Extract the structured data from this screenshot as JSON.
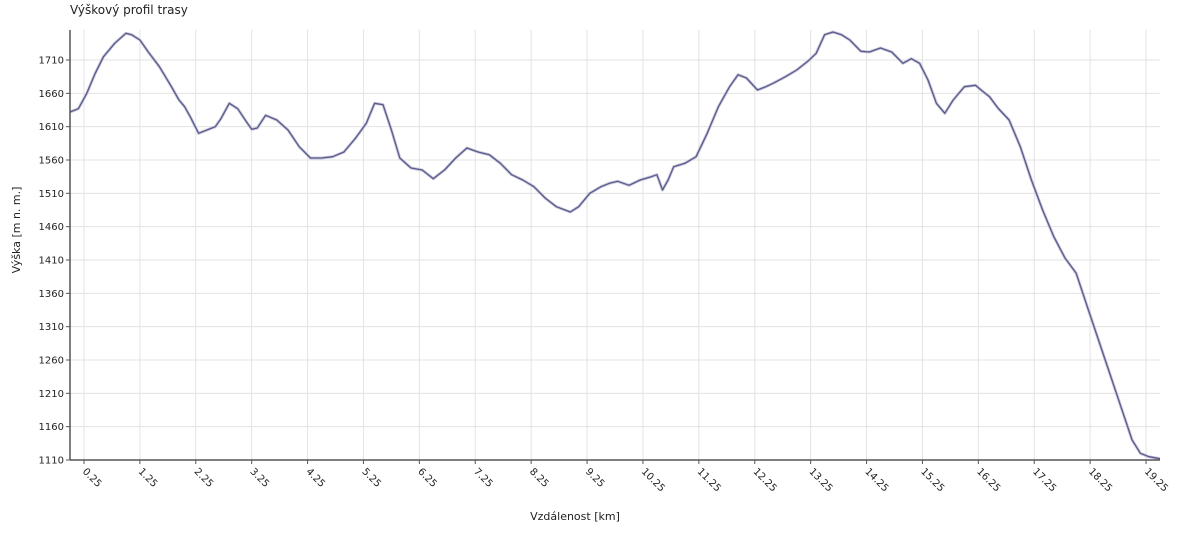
{
  "chart_data": {
    "type": "line",
    "title": "Výškový profil trasy",
    "xlabel": "Vzdálenost [km]",
    "ylabel": "Výška [m n. m.]",
    "xlim": [
      0,
      19.5
    ],
    "ylim": [
      1110,
      1755
    ],
    "x_ticks": [
      0.25,
      1.25,
      2.25,
      3.25,
      4.25,
      5.25,
      6.25,
      7.25,
      8.25,
      9.25,
      10.25,
      11.25,
      12.25,
      13.25,
      14.25,
      15.25,
      16.25,
      17.25,
      18.25,
      19.25
    ],
    "y_ticks": [
      1110,
      1160,
      1210,
      1260,
      1310,
      1360,
      1410,
      1460,
      1510,
      1560,
      1610,
      1660,
      1710
    ],
    "grid": true,
    "colors": {
      "line": "#5a5a8c",
      "grid": "#e3e3e3",
      "axis": "#555555"
    },
    "series": [
      {
        "x": [
          0,
          0.15,
          0.3,
          0.45,
          0.6,
          0.8,
          1.0,
          1.1,
          1.25,
          1.4,
          1.6,
          1.8,
          1.95,
          2.05,
          2.15,
          2.3,
          2.45,
          2.6,
          2.7,
          2.85,
          3.0,
          3.15,
          3.25,
          3.35,
          3.5,
          3.7,
          3.9,
          4.1,
          4.3,
          4.5,
          4.7,
          4.9,
          5.1,
          5.3,
          5.45,
          5.6,
          5.75,
          5.9,
          6.1,
          6.3,
          6.5,
          6.7,
          6.9,
          7.1,
          7.3,
          7.5,
          7.7,
          7.9,
          8.1,
          8.3,
          8.5,
          8.7,
          8.95,
          9.1,
          9.3,
          9.5,
          9.65,
          9.8,
          10.0,
          10.2,
          10.4,
          10.5,
          10.6,
          10.7,
          10.8,
          11.0,
          11.2,
          11.4,
          11.6,
          11.8,
          11.95,
          12.1,
          12.3,
          12.45,
          12.6,
          12.8,
          13.0,
          13.2,
          13.35,
          13.5,
          13.65,
          13.8,
          13.95,
          14.15,
          14.3,
          14.5,
          14.7,
          14.9,
          15.05,
          15.2,
          15.35,
          15.5,
          15.65,
          15.8,
          16.0,
          16.2,
          16.3,
          16.45,
          16.6,
          16.8,
          17.0,
          17.2,
          17.4,
          17.6,
          17.8,
          18.0,
          18.2,
          18.4,
          18.6,
          18.8,
          19.0,
          19.15,
          19.3,
          19.5
        ],
        "values": [
          1632,
          1637,
          1660,
          1690,
          1715,
          1735,
          1750,
          1748,
          1740,
          1722,
          1700,
          1672,
          1650,
          1640,
          1625,
          1600,
          1605,
          1610,
          1622,
          1645,
          1637,
          1618,
          1606,
          1608,
          1627,
          1620,
          1605,
          1580,
          1563,
          1563,
          1565,
          1572,
          1592,
          1615,
          1645,
          1643,
          1605,
          1563,
          1548,
          1545,
          1532,
          1545,
          1563,
          1578,
          1572,
          1568,
          1555,
          1538,
          1530,
          1520,
          1503,
          1490,
          1482,
          1490,
          1510,
          1520,
          1525,
          1528,
          1522,
          1530,
          1535,
          1538,
          1515,
          1530,
          1550,
          1555,
          1565,
          1600,
          1640,
          1670,
          1688,
          1683,
          1665,
          1670,
          1676,
          1685,
          1695,
          1708,
          1720,
          1748,
          1752,
          1748,
          1740,
          1723,
          1722,
          1728,
          1722,
          1705,
          1712,
          1705,
          1680,
          1645,
          1630,
          1650,
          1670,
          1672,
          1665,
          1655,
          1638,
          1620,
          1580,
          1530,
          1485,
          1445,
          1413,
          1390,
          1340,
          1290,
          1240,
          1190,
          1140,
          1120,
          1115,
          1112
        ]
      }
    ]
  }
}
